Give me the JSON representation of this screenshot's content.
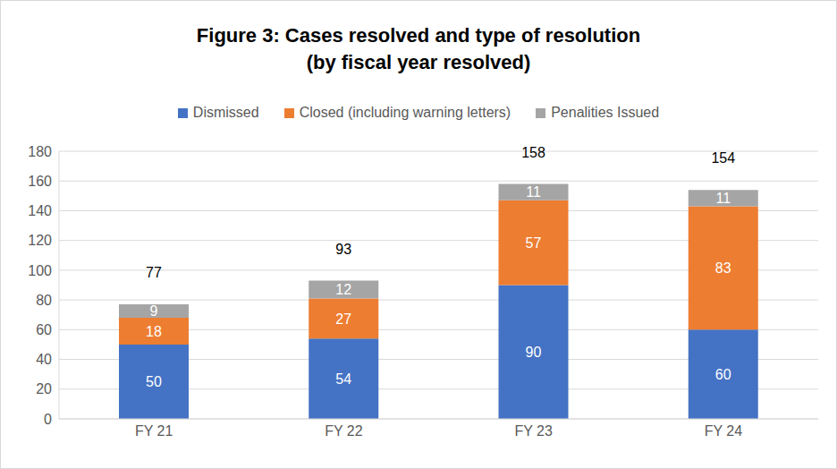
{
  "chart_data": {
    "type": "bar",
    "title": "Figure 3: Cases resolved and type of resolution",
    "subtitle": "(by fiscal year resolved)",
    "categories": [
      "FY 21",
      "FY 22",
      "FY 23",
      "FY 24"
    ],
    "series": [
      {
        "name": "Dismissed",
        "color": "#4472c4",
        "values": [
          50,
          54,
          90,
          60
        ]
      },
      {
        "name": "Closed (including warning letters)",
        "color": "#ed7d31",
        "values": [
          18,
          27,
          57,
          83
        ]
      },
      {
        "name": "Penalities Issued",
        "color": "#a5a5a5",
        "values": [
          9,
          12,
          11,
          11
        ]
      }
    ],
    "totals": [
      77,
      93,
      158,
      154
    ],
    "ylim": [
      0,
      180
    ],
    "yticks": [
      0,
      20,
      40,
      60,
      80,
      100,
      120,
      140,
      160,
      180
    ],
    "grid": true,
    "stacked": true,
    "data_labels": true,
    "legend": "top"
  }
}
